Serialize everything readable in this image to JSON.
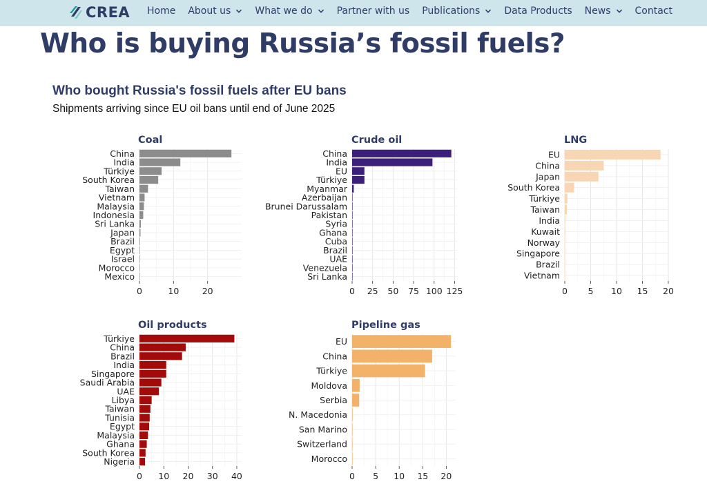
{
  "nav": {
    "logo_text": "CREA",
    "items": [
      {
        "label": "Home",
        "dropdown": false
      },
      {
        "label": "About us",
        "dropdown": true
      },
      {
        "label": "What we do",
        "dropdown": true
      },
      {
        "label": "Partner with us",
        "dropdown": false
      },
      {
        "label": "Publications",
        "dropdown": true
      },
      {
        "label": "Data Products",
        "dropdown": false
      },
      {
        "label": "News",
        "dropdown": true
      },
      {
        "label": "Contact",
        "dropdown": false
      }
    ]
  },
  "page_title": "Who is buying Russia’s fossil fuels?",
  "figure": {
    "title": "Who bought Russia's fossil fuels after EU bans",
    "subtitle": "Shipments arriving since EU oil bans until end of June 2025"
  },
  "colors": {
    "nav_bg": "#cfe5ec",
    "brand_navy": "#2f3c66",
    "coal": "#8c8c8c",
    "crude_oil": "#3b1f7a",
    "lng": "#f8d6b4",
    "oil_products": "#a30b0b",
    "pipeline_gas": "#f3b26a"
  },
  "chart_data": [
    {
      "type": "bar",
      "orientation": "horizontal",
      "title": "Coal",
      "categories": [
        "China",
        "India",
        "Türkiye",
        "South Korea",
        "Taiwan",
        "Vietnam",
        "Malaysia",
        "Indonesia",
        "Sri Lanka",
        "Japan",
        "Brazil",
        "Egypt",
        "Israel",
        "Morocco",
        "Mexico"
      ],
      "values": [
        27,
        12,
        6.5,
        5.5,
        2.5,
        1.5,
        1.3,
        1.1,
        0.4,
        0.3,
        0.15,
        0.1,
        0.05,
        0.05,
        0.05
      ],
      "xlim": [
        0,
        30
      ],
      "xticks": [
        0,
        10,
        20
      ],
      "grid": true
    },
    {
      "type": "bar",
      "orientation": "horizontal",
      "title": "Crude oil",
      "categories": [
        "China",
        "India",
        "EU",
        "Türkiye",
        "Myanmar",
        "Azerbaijan",
        "Brunei Darussalam",
        "Pakistan",
        "Syria",
        "Ghana",
        "Cuba",
        "Brazil",
        "UAE",
        "Venezuela",
        "Sri Lanka"
      ],
      "values": [
        121,
        98,
        15,
        15,
        2,
        0.3,
        0.3,
        0.3,
        0.2,
        0.2,
        0.2,
        0.2,
        0.1,
        0.1,
        0.1
      ],
      "xlim": [
        0,
        128
      ],
      "xticks": [
        0,
        25,
        50,
        75,
        100,
        125
      ],
      "grid": true
    },
    {
      "type": "bar",
      "orientation": "horizontal",
      "title": "LNG",
      "categories": [
        "EU",
        "China",
        "Japan",
        "South Korea",
        "Türkiye",
        "Taiwan",
        "India",
        "Kuwait",
        "Norway",
        "Singapore",
        "Brazil",
        "Vietnam"
      ],
      "values": [
        18.5,
        7.5,
        6.5,
        1.8,
        0.5,
        0.4,
        0.1,
        0.1,
        0.05,
        0.05,
        0.05,
        0.05
      ],
      "xlim": [
        0,
        20
      ],
      "xticks": [
        0,
        5,
        10,
        15,
        20
      ],
      "grid": true
    },
    {
      "type": "bar",
      "orientation": "horizontal",
      "title": "Oil products",
      "categories": [
        "Türkiye",
        "China",
        "Brazil",
        "India",
        "Singapore",
        "Saudi Arabia",
        "UAE",
        "Libya",
        "Taiwan",
        "Tunisia",
        "Egypt",
        "Malaysia",
        "Ghana",
        "South Korea",
        "Nigeria"
      ],
      "values": [
        39,
        19,
        17.5,
        11,
        11,
        9,
        8,
        5,
        4.5,
        4.2,
        4,
        3.5,
        3,
        2.5,
        2.3
      ],
      "xlim": [
        0,
        42
      ],
      "xticks": [
        0,
        10,
        20,
        30,
        40
      ],
      "grid": true
    },
    {
      "type": "bar",
      "orientation": "horizontal",
      "title": "Pipeline gas",
      "categories": [
        "EU",
        "China",
        "Türkiye",
        "Moldova",
        "Serbia",
        "N. Macedonia",
        "San Marino",
        "Switzerland",
        "Morocco"
      ],
      "values": [
        21,
        17,
        15.5,
        1.6,
        1.5,
        0.1,
        0.05,
        0.05,
        0.05
      ],
      "xlim": [
        0,
        22
      ],
      "xticks": [
        0,
        5,
        10,
        15,
        20
      ],
      "grid": true
    }
  ]
}
